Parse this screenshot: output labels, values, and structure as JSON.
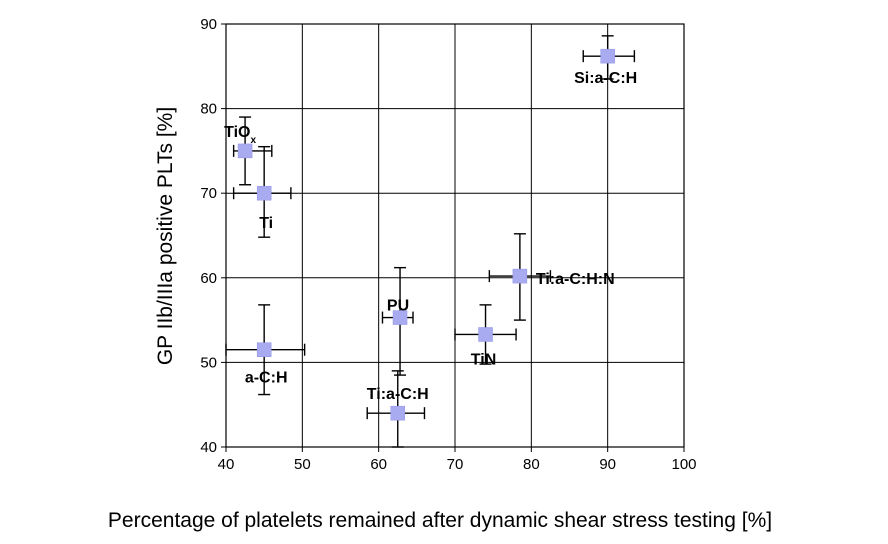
{
  "chart_data": {
    "type": "scatter",
    "xlabel": "Percentage of platelets remained after dynamic shear stress testing [%]",
    "ylabel": "GP IIb/IIIa positive PLTs [%]",
    "xlim": [
      40,
      100
    ],
    "ylim": [
      40,
      90
    ],
    "xticks": [
      40,
      50,
      60,
      70,
      80,
      90,
      100
    ],
    "yticks": [
      40,
      50,
      60,
      70,
      80,
      90
    ],
    "grid": true,
    "marker_color": "#a9abf0",
    "points": [
      {
        "label": "TiO",
        "label_sub": "x",
        "x": 42.5,
        "y": 75.0,
        "xerr": [
          41.0,
          46.0
        ],
        "yerr": [
          71.0,
          79.0
        ]
      },
      {
        "label": "Ti",
        "x": 45.0,
        "y": 70.0,
        "xerr": [
          41.0,
          48.5
        ],
        "yerr": [
          64.8,
          75.5
        ]
      },
      {
        "label": "Si:a-C:H",
        "x": 90.0,
        "y": 86.2,
        "xerr": [
          86.8,
          93.5
        ],
        "yerr": [
          83.5,
          88.6
        ]
      },
      {
        "label": "Ti:a-C:H:N",
        "x": 78.5,
        "y": 60.2,
        "xerr": [
          74.5,
          82.5
        ],
        "yerr": [
          55.0,
          65.2
        ]
      },
      {
        "label": "PU",
        "x": 62.8,
        "y": 55.3,
        "xerr": [
          60.5,
          64.5
        ],
        "yerr": [
          48.5,
          61.2
        ]
      },
      {
        "label": "TiN",
        "x": 74.0,
        "y": 53.3,
        "xerr": [
          70.0,
          78.0
        ],
        "yerr": [
          49.8,
          56.8
        ]
      },
      {
        "label": "a-C:H",
        "x": 45.0,
        "y": 51.5,
        "xerr": [
          40.0,
          50.3
        ],
        "yerr": [
          46.2,
          56.8
        ]
      },
      {
        "label": "Ti:a-C:H",
        "x": 62.5,
        "y": 44.0,
        "xerr": [
          58.5,
          66.0
        ],
        "yerr": [
          40.0,
          49.0
        ]
      }
    ]
  }
}
